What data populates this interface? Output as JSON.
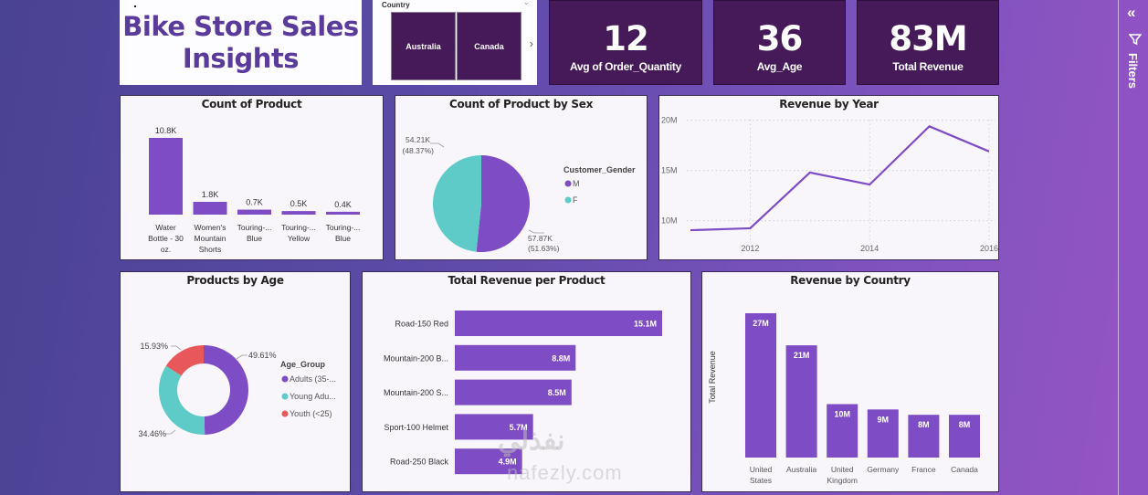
{
  "header": {
    "title_line1": "Bike Store Sales",
    "title_line2": "Insights"
  },
  "slicer": {
    "label": "Country",
    "options": [
      "Australia",
      "Canada"
    ],
    "chevron_icon": "chevron-down-icon",
    "next_icon": "chevron-right-icon"
  },
  "kpis": [
    {
      "value": "12",
      "label": "Avg of Order_Quantity"
    },
    {
      "value": "36",
      "label": "Avg_Age"
    },
    {
      "value": "83M",
      "label": "Total Revenue"
    }
  ],
  "filters_pane": {
    "label": "Filters",
    "collapse_icon": "double-chevron-left-icon",
    "filter_icon": "funnel-icon"
  },
  "colors": {
    "purple": "#7e4cc4",
    "teal": "#5ecbc8",
    "red": "#e8575a",
    "kpi_bg": "#461a58",
    "title_color": "#5a3a9a"
  },
  "watermark": {
    "arabic": "نفذلي",
    "latin": "nafezly.com"
  },
  "chart_data": [
    {
      "id": "count_of_product",
      "type": "bar",
      "title": "Count of Product",
      "categories": [
        "Water Bottle - 30 oz.",
        "Women's Mountain Shorts",
        "Touring-... Blue",
        "Touring-... Yellow",
        "Touring-... Blue"
      ],
      "category_lines": [
        [
          "Water",
          "Bottle - 30",
          "oz."
        ],
        [
          "Women's",
          "Mountain",
          "Shorts"
        ],
        [
          "Touring-...",
          "Blue"
        ],
        [
          "Touring-...",
          "Yellow"
        ],
        [
          "Touring-...",
          "Blue"
        ]
      ],
      "values": [
        10800,
        1800,
        700,
        500,
        400
      ],
      "data_labels": [
        "10.8K",
        "1.8K",
        "0.7K",
        "0.5K",
        "0.4K"
      ],
      "ylim": [
        0,
        10800
      ]
    },
    {
      "id": "count_by_sex",
      "type": "pie",
      "title": "Count of Product by Sex",
      "legend_title": "Customer_Gender",
      "legend_position": "right",
      "slices": [
        {
          "name": "M",
          "value": 57870,
          "percent": 51.63,
          "label": "57.87K",
          "pct_label": "(51.63%)"
        },
        {
          "name": "F",
          "value": 54210,
          "percent": 48.37,
          "label": "54.21K",
          "pct_label": "(48.37%)"
        }
      ]
    },
    {
      "id": "revenue_by_year",
      "type": "line",
      "title": "Revenue by Year",
      "x": [
        2011,
        2012,
        2013,
        2014,
        2015,
        2016
      ],
      "values": [
        9.06,
        9.25,
        14.8,
        13.6,
        19.4,
        16.9
      ],
      "unit": "M",
      "xticks": [
        "2012",
        "2014",
        "2016"
      ],
      "yticks": [
        "10M",
        "15M",
        "20M"
      ],
      "ylim": [
        8,
        20.5
      ],
      "grid": true
    },
    {
      "id": "products_by_age",
      "type": "pie",
      "subtype": "donut",
      "title": "Products by Age",
      "legend_title": "Age_Group",
      "legend_position": "right",
      "slices": [
        {
          "name": "Adults (35-...",
          "percent": 49.61,
          "label": "49.61%"
        },
        {
          "name": "Young Adu...",
          "percent": 34.46,
          "label": "34.46%"
        },
        {
          "name": "Youth (<25)",
          "percent": 15.93,
          "label": "15.93%"
        }
      ]
    },
    {
      "id": "revenue_per_product",
      "type": "bar",
      "orientation": "horizontal",
      "title": "Total Revenue per Product",
      "categories": [
        "Road-150 Red",
        "Mountain-200 B...",
        "Mountain-200 S...",
        "Sport-100 Helmet",
        "Road-250 Black"
      ],
      "values": [
        15.1,
        8.8,
        8.5,
        5.7,
        4.9
      ],
      "data_labels": [
        "15.1M",
        "8.8M",
        "8.5M",
        "5.7M",
        "4.9M"
      ],
      "unit": "M",
      "xlim": [
        0,
        15.1
      ]
    },
    {
      "id": "revenue_by_country",
      "type": "bar",
      "title": "Revenue by Country",
      "ylabel": "Total Revenue",
      "categories": [
        "United States",
        "Australia",
        "United Kingdom",
        "Germany",
        "France",
        "Canada"
      ],
      "category_lines": [
        [
          "United",
          "States"
        ],
        [
          "Australia"
        ],
        [
          "United",
          "Kingdom"
        ],
        [
          "Germany"
        ],
        [
          "France"
        ],
        [
          "Canada"
        ]
      ],
      "values": [
        27,
        21,
        10,
        9,
        8,
        8
      ],
      "data_labels": [
        "27M",
        "21M",
        "10M",
        "9M",
        "8M",
        "8M"
      ],
      "unit": "M",
      "ylim": [
        0,
        27
      ]
    }
  ]
}
